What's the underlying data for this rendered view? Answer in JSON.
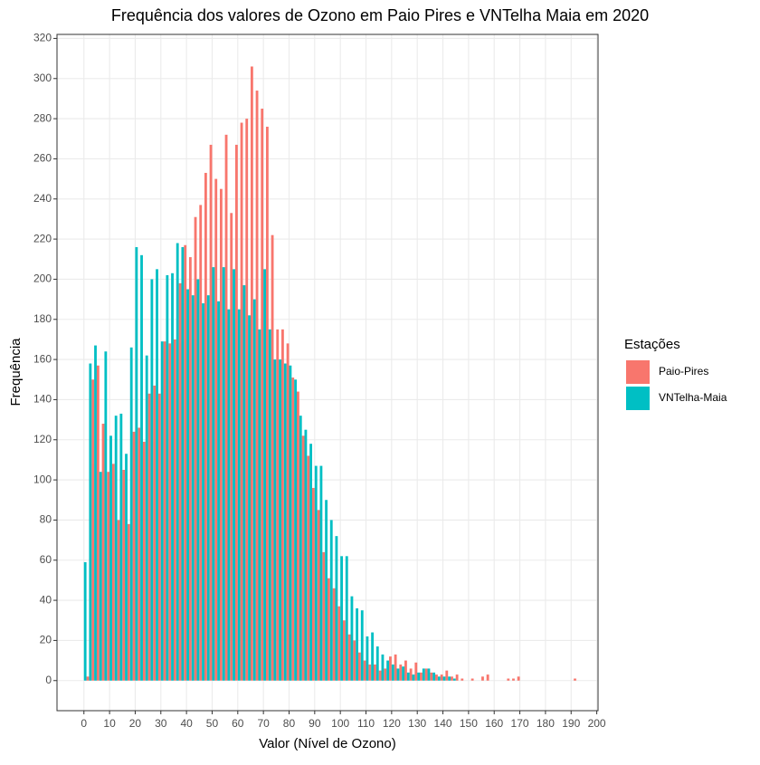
{
  "chart_data": {
    "type": "histogram",
    "title": "Frequência dos valores de Ozono em Paio Pires e VNTelha Maia em 2020",
    "x_label": "Valor (Nível de Ozono)",
    "y_label": "Frequência",
    "legend_title": "Estações",
    "legend_position": "right",
    "grid": true,
    "bins": [
      0,
      2,
      4,
      6,
      8,
      10,
      12,
      14,
      16,
      18,
      20,
      22,
      24,
      26,
      28,
      30,
      32,
      34,
      36,
      38,
      40,
      42,
      44,
      46,
      48,
      50,
      52,
      54,
      56,
      58,
      60,
      62,
      64,
      66,
      68,
      70,
      72,
      74,
      76,
      78,
      80,
      82,
      84,
      86,
      88,
      90,
      92,
      94,
      96,
      98,
      100,
      102,
      104,
      106,
      108,
      110,
      112,
      114,
      116,
      118,
      120,
      122,
      124,
      126,
      128,
      130,
      132,
      134,
      136,
      138,
      140,
      142,
      144,
      146,
      148,
      150,
      152,
      154,
      156,
      158,
      160,
      162,
      164,
      166,
      168,
      170,
      172,
      174,
      176,
      178,
      180,
      182,
      184,
      186,
      188,
      190,
      192
    ],
    "series": [
      {
        "name": "Paio-Pires",
        "color": "#f8766d",
        "values": [
          2,
          150,
          157,
          128,
          104,
          108,
          80,
          105,
          78,
          124,
          126,
          119,
          143,
          147,
          143,
          169,
          168,
          170,
          198,
          217,
          211,
          231,
          237,
          253,
          267,
          250,
          245,
          272,
          233,
          267,
          278,
          280,
          306,
          294,
          285,
          276,
          222,
          175,
          175,
          168,
          151,
          144,
          122,
          112,
          96,
          85,
          64,
          51,
          46,
          37,
          30,
          23,
          20,
          14,
          10,
          8,
          8,
          5,
          6,
          12,
          13,
          8,
          10,
          6,
          9,
          4,
          6,
          4,
          3,
          3,
          5,
          2,
          3,
          1,
          0,
          1,
          0,
          2,
          3,
          0,
          0,
          0,
          1,
          1,
          2,
          0,
          0,
          0,
          0,
          0,
          0,
          0,
          0,
          0,
          0,
          1
        ]
      },
      {
        "name": "VNTelha-Maia",
        "color": "#00bfc4",
        "values": [
          59,
          158,
          167,
          104,
          164,
          122,
          132,
          133,
          113,
          166,
          216,
          212,
          162,
          200,
          205,
          169,
          202,
          203,
          218,
          216,
          195,
          192,
          200,
          188,
          192,
          206,
          189,
          206,
          185,
          205,
          185,
          197,
          182,
          190,
          175,
          205,
          175,
          160,
          160,
          158,
          157,
          150,
          132,
          125,
          118,
          107,
          107,
          90,
          80,
          72,
          62,
          62,
          42,
          36,
          35,
          22,
          24,
          17,
          13,
          10,
          8,
          6,
          7,
          4,
          3,
          4,
          6,
          6,
          4,
          2,
          2,
          2,
          1,
          0,
          0,
          0,
          0,
          0,
          0,
          0,
          0,
          0,
          0,
          0,
          0,
          0,
          0,
          0,
          0,
          0,
          0,
          0,
          0,
          0,
          0,
          0
        ]
      }
    ],
    "xlim": [
      -10.5,
      200.5
    ],
    "ylim": [
      -15,
      322
    ],
    "xticks": [
      0,
      10,
      20,
      30,
      40,
      50,
      60,
      70,
      80,
      90,
      100,
      110,
      120,
      130,
      140,
      150,
      160,
      170,
      180,
      190,
      200
    ],
    "yticks": [
      0,
      20,
      40,
      60,
      80,
      100,
      120,
      140,
      160,
      180,
      200,
      220,
      240,
      260,
      280,
      300,
      320
    ]
  }
}
